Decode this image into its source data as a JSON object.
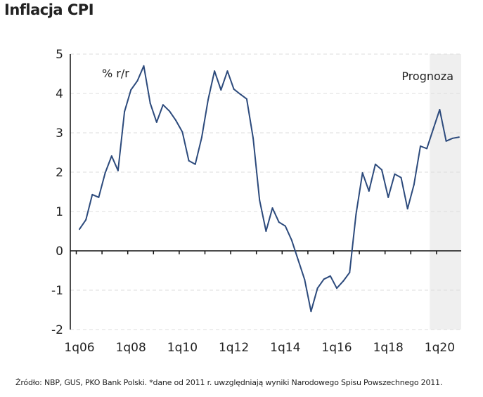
{
  "chart_data": {
    "type": "line",
    "title": "Inflacja CPI",
    "ylabel": "% r/r",
    "xlabel": "",
    "ylim": [
      -2,
      5
    ],
    "yticks": [
      5,
      4,
      3,
      2,
      1,
      0,
      -1,
      -2
    ],
    "xtick_labels": [
      "1q06",
      "1q08",
      "1q10",
      "1q12",
      "1q14",
      "1q16",
      "1q18",
      "1q20"
    ],
    "grid": true,
    "forecast_label": "Prognoza",
    "forecast_start": "4q19",
    "start_period": "1q06",
    "end_period": "4q20",
    "series": [
      {
        "name": "CPI % r/r",
        "color": "#2c4a7c",
        "values": [
          0.55,
          0.79,
          1.43,
          1.36,
          1.98,
          2.41,
          2.04,
          3.54,
          4.09,
          4.32,
          4.7,
          3.75,
          3.27,
          3.71,
          3.55,
          3.31,
          3.02,
          2.29,
          2.2,
          2.88,
          3.84,
          4.57,
          4.09,
          4.57,
          4.11,
          3.98,
          3.86,
          2.86,
          1.29,
          0.5,
          1.09,
          0.73,
          0.63,
          0.27,
          -0.23,
          -0.73,
          -1.54,
          -0.95,
          -0.72,
          -0.64,
          -0.95,
          -0.77,
          -0.55,
          0.93,
          1.98,
          1.52,
          2.2,
          2.06,
          1.36,
          1.95,
          1.86,
          1.07,
          1.68,
          2.66,
          2.6,
          3.1,
          3.59,
          2.79,
          2.86,
          2.89
        ]
      }
    ]
  },
  "source": "Źródło: NBP, GUS, PKO Bank Polski. *dane od 2011 r. uwzględniają wyniki Narodowego Spisu Powszechnego 2011."
}
